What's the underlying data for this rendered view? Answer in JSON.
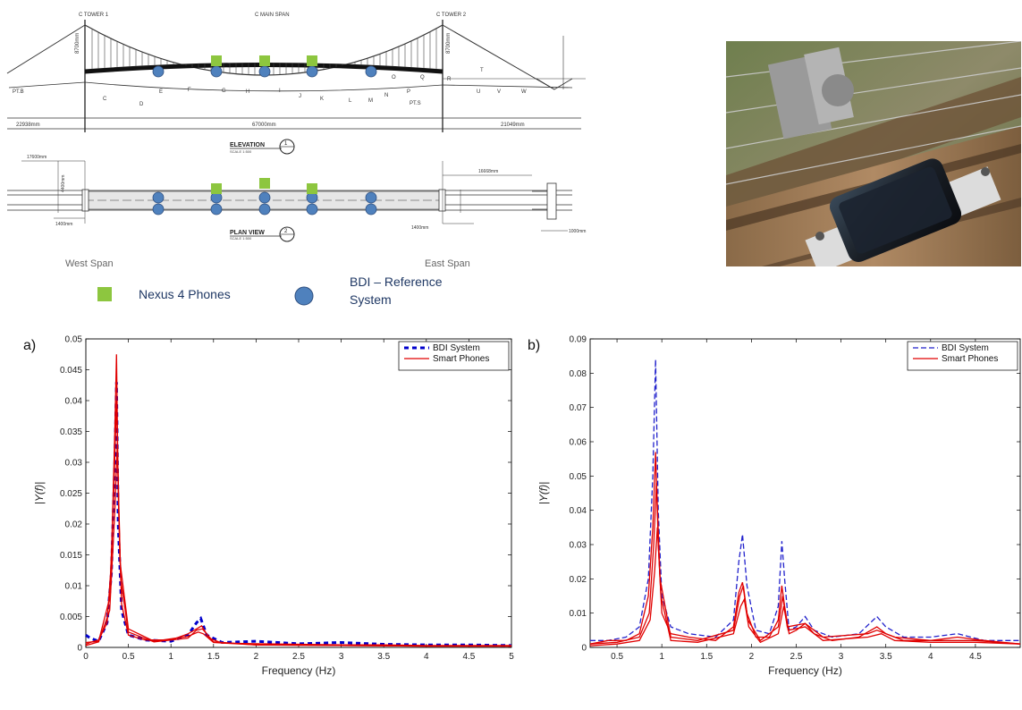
{
  "drawing": {
    "elevation_title": "ELEVATION",
    "elevation_scale": "SCALE 1:500",
    "elevation_badge": "1",
    "plan_title": "PLAN VIEW",
    "plan_scale": "SCALE 1:500",
    "plan_badge": "2",
    "west_span": "West Span",
    "east_span": "East Span",
    "tower1": "C TOWER 1",
    "tower2": "C TOWER 2",
    "main_span": "C MAIN SPAN",
    "dim_left": "22938mm",
    "dim_main": "67000mm",
    "dim_right": "21049mm",
    "dim_tower": "8700mm",
    "dim_plan_top": "17600mm",
    "dim_plan_side": "4400mm",
    "dim_plan_left": "1400mm",
    "dim_plan_right": "1400mm",
    "dim_plan_east": "16668mm",
    "dim_plan_far": "1000mm",
    "pt_b": "PT.B",
    "pt_s": "PT.S",
    "letters": [
      "C",
      "D",
      "E",
      "F",
      "G",
      "H",
      "I",
      "J",
      "K",
      "L",
      "M",
      "N",
      "O",
      "P",
      "Q",
      "R",
      "T",
      "U",
      "V",
      "W"
    ]
  },
  "legend": {
    "phones_label": "Nexus 4 Phones",
    "bdi_label": "BDI – Reference System",
    "phones_color": "#8dc63f",
    "bdi_color": "#4f81bd"
  },
  "photo": {
    "description_icon": "smartphone-on-bridge-photo"
  },
  "chart_data": [
    {
      "type": "line",
      "panel_label": "a)",
      "xlabel": "Frequency (Hz)",
      "ylabel": "|Y(f)|",
      "xlim": [
        0,
        5
      ],
      "ylim": [
        0,
        0.05
      ],
      "xticks": [
        0,
        0.5,
        1,
        1.5,
        2,
        2.5,
        3,
        3.5,
        4,
        4.5,
        5
      ],
      "yticks": [
        0,
        0.005,
        0.01,
        0.015,
        0.02,
        0.025,
        0.03,
        0.035,
        0.04,
        0.045,
        0.05
      ],
      "xtick_labels": [
        "0",
        "0.5",
        "1",
        "1.5",
        "2",
        "2.5",
        "3",
        "3.5",
        "4",
        "4.5",
        "5"
      ],
      "ytick_labels": [
        "0",
        "0.005",
        "0.01",
        "0.015",
        "0.02",
        "0.025",
        "0.03",
        "0.035",
        "0.04",
        "0.045",
        "0.05"
      ],
      "legend_position": "top-right",
      "series": [
        {
          "name": "BDI System",
          "color": "#0000cc",
          "dash": "heavy-dashed",
          "x": [
            0,
            0.05,
            0.15,
            0.25,
            0.3,
            0.34,
            0.36,
            0.38,
            0.42,
            0.5,
            0.7,
            1.0,
            1.2,
            1.3,
            1.35,
            1.42,
            1.6,
            2.0,
            2.5,
            3.0,
            3.5,
            4.0,
            4.5,
            5.0
          ],
          "y": [
            0.002,
            0.0015,
            0.001,
            0.004,
            0.012,
            0.03,
            0.043,
            0.02,
            0.006,
            0.002,
            0.0012,
            0.001,
            0.002,
            0.004,
            0.0047,
            0.002,
            0.0008,
            0.001,
            0.0006,
            0.0008,
            0.0005,
            0.0004,
            0.0004,
            0.0003
          ]
        },
        {
          "name": "Smart Phones",
          "color": "#e00000",
          "dash": "solid",
          "x": [
            0,
            0.05,
            0.15,
            0.25,
            0.3,
            0.34,
            0.36,
            0.38,
            0.42,
            0.5,
            0.7,
            1.0,
            1.2,
            1.3,
            1.36,
            1.45,
            1.6,
            2.0,
            2.5,
            3.0,
            3.5,
            4.0,
            4.5,
            5.0
          ],
          "y": [
            0.0005,
            0.0008,
            0.0012,
            0.004,
            0.014,
            0.035,
            0.0475,
            0.025,
            0.007,
            0.002,
            0.0012,
            0.0012,
            0.0022,
            0.003,
            0.0035,
            0.0015,
            0.0007,
            0.0006,
            0.0005,
            0.0004,
            0.0004,
            0.0003,
            0.0003,
            0.0003
          ]
        },
        {
          "name": "",
          "color": "#e00000",
          "dash": "solid",
          "x": [
            0,
            0.15,
            0.28,
            0.33,
            0.36,
            0.4,
            0.5,
            0.8,
            1.2,
            1.32,
            1.38,
            1.5,
            2.0,
            3.0,
            4.0,
            5.0
          ],
          "y": [
            0.0008,
            0.001,
            0.008,
            0.026,
            0.04,
            0.014,
            0.003,
            0.001,
            0.0018,
            0.0025,
            0.0022,
            0.0008,
            0.0004,
            0.0003,
            0.0002,
            0.0002
          ]
        },
        {
          "name": "",
          "color": "#e00000",
          "dash": "solid",
          "x": [
            0,
            0.15,
            0.28,
            0.34,
            0.37,
            0.41,
            0.5,
            0.8,
            1.2,
            1.3,
            1.37,
            1.5,
            2.0,
            3.0,
            4.0,
            5.0
          ],
          "y": [
            0.0003,
            0.0009,
            0.006,
            0.022,
            0.033,
            0.011,
            0.0025,
            0.0009,
            0.0015,
            0.0028,
            0.003,
            0.0009,
            0.0004,
            0.0003,
            0.0002,
            0.0002
          ]
        }
      ]
    },
    {
      "type": "line",
      "panel_label": "b)",
      "xlabel": "Frequency (Hz)",
      "ylabel": "|Y(f)|",
      "xlim": [
        0.2,
        5.0
      ],
      "ylim": [
        0,
        0.09
      ],
      "xticks": [
        0.5,
        1,
        1.5,
        2,
        2.5,
        3,
        3.5,
        4,
        4.5
      ],
      "yticks": [
        0,
        0.01,
        0.02,
        0.03,
        0.04,
        0.05,
        0.06,
        0.07,
        0.08,
        0.09
      ],
      "xtick_labels": [
        "0.5",
        "1",
        "1.5",
        "2",
        "2.5",
        "3",
        "3.5",
        "4",
        "4.5"
      ],
      "ytick_labels": [
        "0",
        "0.01",
        "0.02",
        "0.03",
        "0.04",
        "0.05",
        "0.06",
        "0.07",
        "0.08",
        "0.09"
      ],
      "legend_position": "top-right",
      "series": [
        {
          "name": "BDI System",
          "color": "#2222cc",
          "dash": "dashed",
          "x": [
            0.2,
            0.4,
            0.6,
            0.75,
            0.85,
            0.9,
            0.93,
            0.96,
            1.0,
            1.1,
            1.3,
            1.6,
            1.8,
            1.86,
            1.9,
            1.95,
            2.05,
            2.2,
            2.3,
            2.34,
            2.37,
            2.42,
            2.5,
            2.6,
            2.7,
            2.9,
            3.2,
            3.4,
            3.5,
            3.7,
            4.0,
            4.3,
            4.6,
            5.0
          ],
          "y": [
            0.002,
            0.002,
            0.003,
            0.006,
            0.02,
            0.05,
            0.084,
            0.04,
            0.015,
            0.006,
            0.004,
            0.003,
            0.008,
            0.025,
            0.033,
            0.018,
            0.005,
            0.004,
            0.012,
            0.031,
            0.02,
            0.005,
            0.006,
            0.009,
            0.005,
            0.003,
            0.004,
            0.009,
            0.006,
            0.003,
            0.003,
            0.004,
            0.002,
            0.002
          ]
        },
        {
          "name": "Smart Phones",
          "color": "#e00000",
          "dash": "solid",
          "x": [
            0.2,
            0.4,
            0.6,
            0.75,
            0.85,
            0.9,
            0.93,
            0.96,
            1.0,
            1.1,
            1.3,
            1.6,
            1.8,
            1.86,
            1.9,
            1.95,
            2.05,
            2.2,
            2.3,
            2.34,
            2.37,
            2.42,
            2.5,
            2.6,
            2.7,
            2.9,
            3.2,
            3.4,
            3.5,
            3.7,
            4.0,
            4.3,
            4.6,
            5.0
          ],
          "y": [
            0.001,
            0.002,
            0.002,
            0.004,
            0.015,
            0.035,
            0.057,
            0.03,
            0.01,
            0.004,
            0.003,
            0.002,
            0.006,
            0.016,
            0.019,
            0.01,
            0.003,
            0.003,
            0.008,
            0.018,
            0.012,
            0.004,
            0.005,
            0.007,
            0.004,
            0.002,
            0.003,
            0.006,
            0.004,
            0.002,
            0.002,
            0.003,
            0.002,
            0.001
          ]
        },
        {
          "name": "",
          "color": "#e00000",
          "dash": "solid",
          "x": [
            0.2,
            0.5,
            0.75,
            0.86,
            0.91,
            0.94,
            0.98,
            1.1,
            1.4,
            1.8,
            1.87,
            1.91,
            1.96,
            2.1,
            2.3,
            2.35,
            2.4,
            2.6,
            2.8,
            3.3,
            3.4,
            3.6,
            4.0,
            4.5,
            5.0
          ],
          "y": [
            0.001,
            0.0015,
            0.003,
            0.01,
            0.03,
            0.048,
            0.02,
            0.003,
            0.002,
            0.005,
            0.015,
            0.018,
            0.008,
            0.002,
            0.006,
            0.015,
            0.006,
            0.007,
            0.003,
            0.004,
            0.005,
            0.003,
            0.002,
            0.002,
            0.001
          ]
        },
        {
          "name": "",
          "color": "#e00000",
          "dash": "solid",
          "x": [
            0.2,
            0.5,
            0.75,
            0.87,
            0.92,
            0.95,
            0.99,
            1.1,
            1.4,
            1.8,
            1.88,
            1.92,
            1.97,
            2.1,
            2.3,
            2.36,
            2.41,
            2.6,
            2.8,
            3.3,
            3.45,
            3.6,
            4.0,
            4.5,
            5.0
          ],
          "y": [
            0.0005,
            0.001,
            0.002,
            0.008,
            0.022,
            0.035,
            0.015,
            0.002,
            0.0015,
            0.004,
            0.012,
            0.014,
            0.006,
            0.0015,
            0.004,
            0.012,
            0.005,
            0.006,
            0.002,
            0.003,
            0.004,
            0.002,
            0.0015,
            0.0015,
            0.001
          ]
        }
      ]
    }
  ]
}
